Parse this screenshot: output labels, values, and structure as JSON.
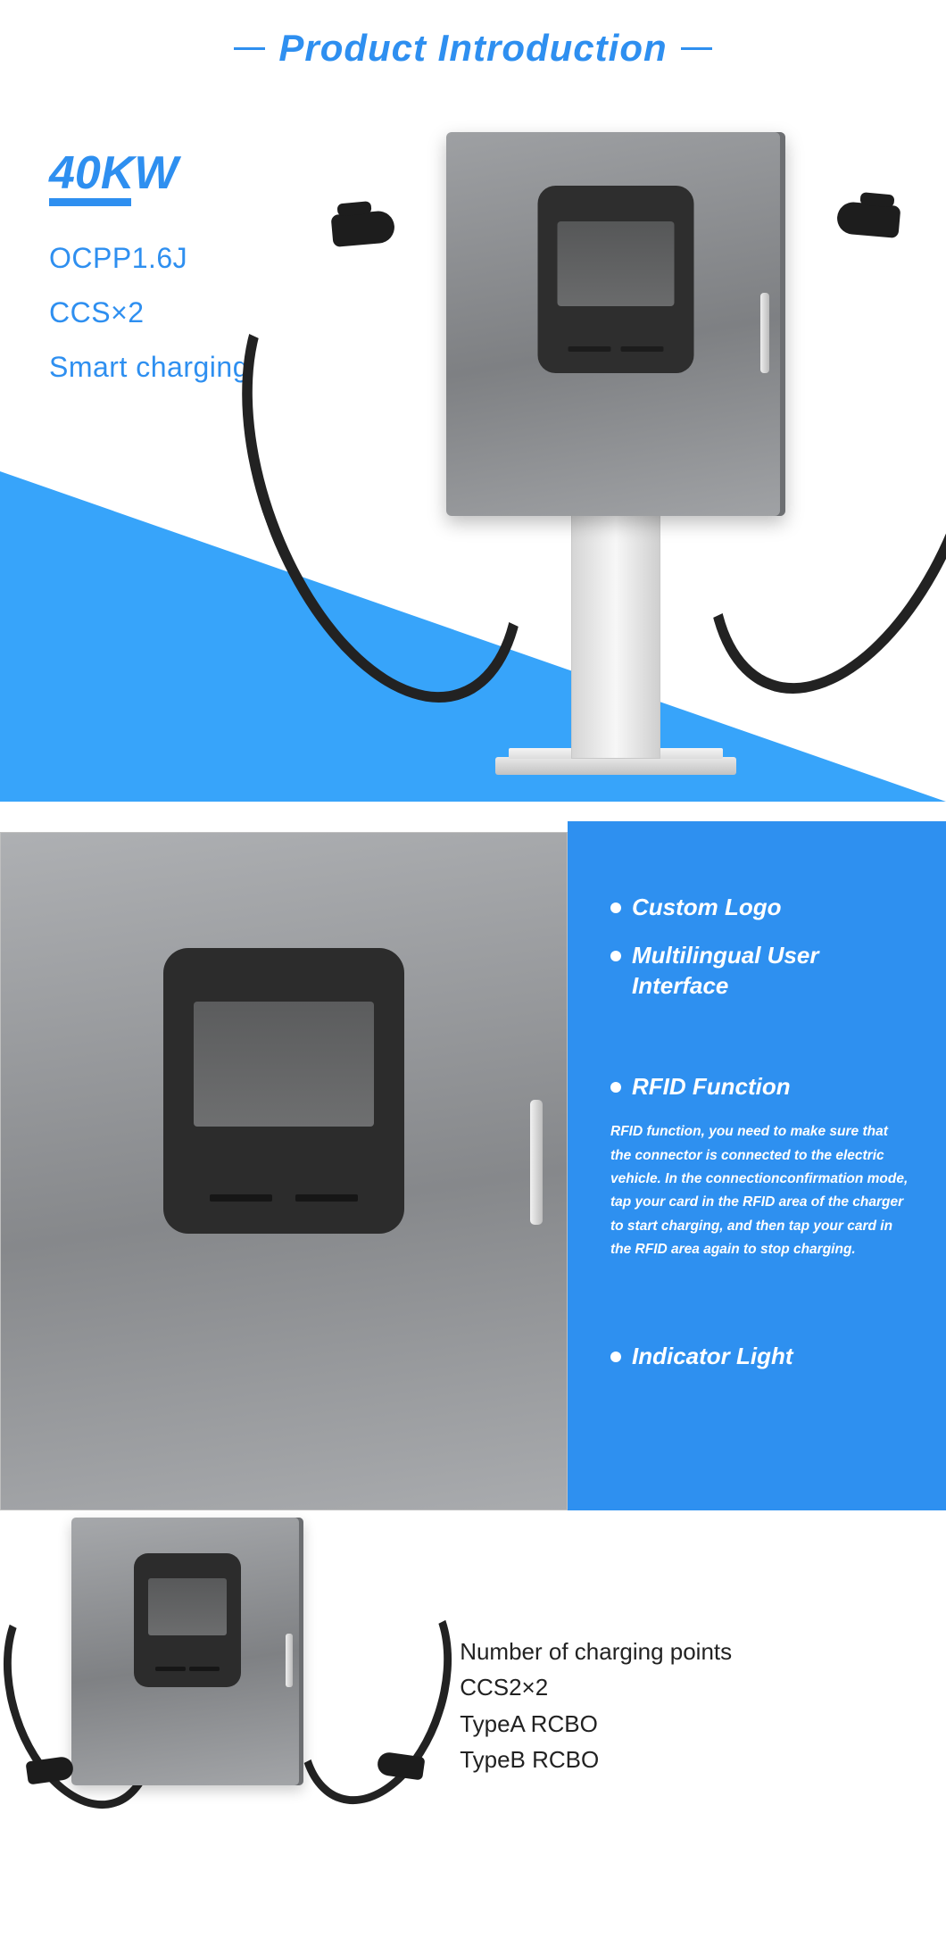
{
  "header": {
    "title": "Product Introduction"
  },
  "hero": {
    "power": "40KW",
    "specs": [
      "OCPP1.6J",
      "CCS×2",
      "Smart charging"
    ]
  },
  "features": {
    "top": [
      "Custom Logo",
      "Multilingual User Interface"
    ],
    "rfid_title": "RFID Function",
    "rfid_desc": "RFID function, you need to make sure that the connector is connected to the electric vehicle. In the connectionconfirmation mode, tap your card in the RFID area of the charger to start charging, and then tap your card in the RFID area again to stop charging.",
    "indicator": "Indicator Light"
  },
  "bottom": {
    "lines": [
      "Number of charging points",
      "CCS2×2",
      "TypeA RCBO",
      "TypeB RCBO"
    ]
  },
  "colors": {
    "accent": "#2e8ff0",
    "hero_triangle": "#37a4fa",
    "panel_blue": "#2e90f0",
    "device_body": "#86888b",
    "text_dark": "#222222"
  }
}
